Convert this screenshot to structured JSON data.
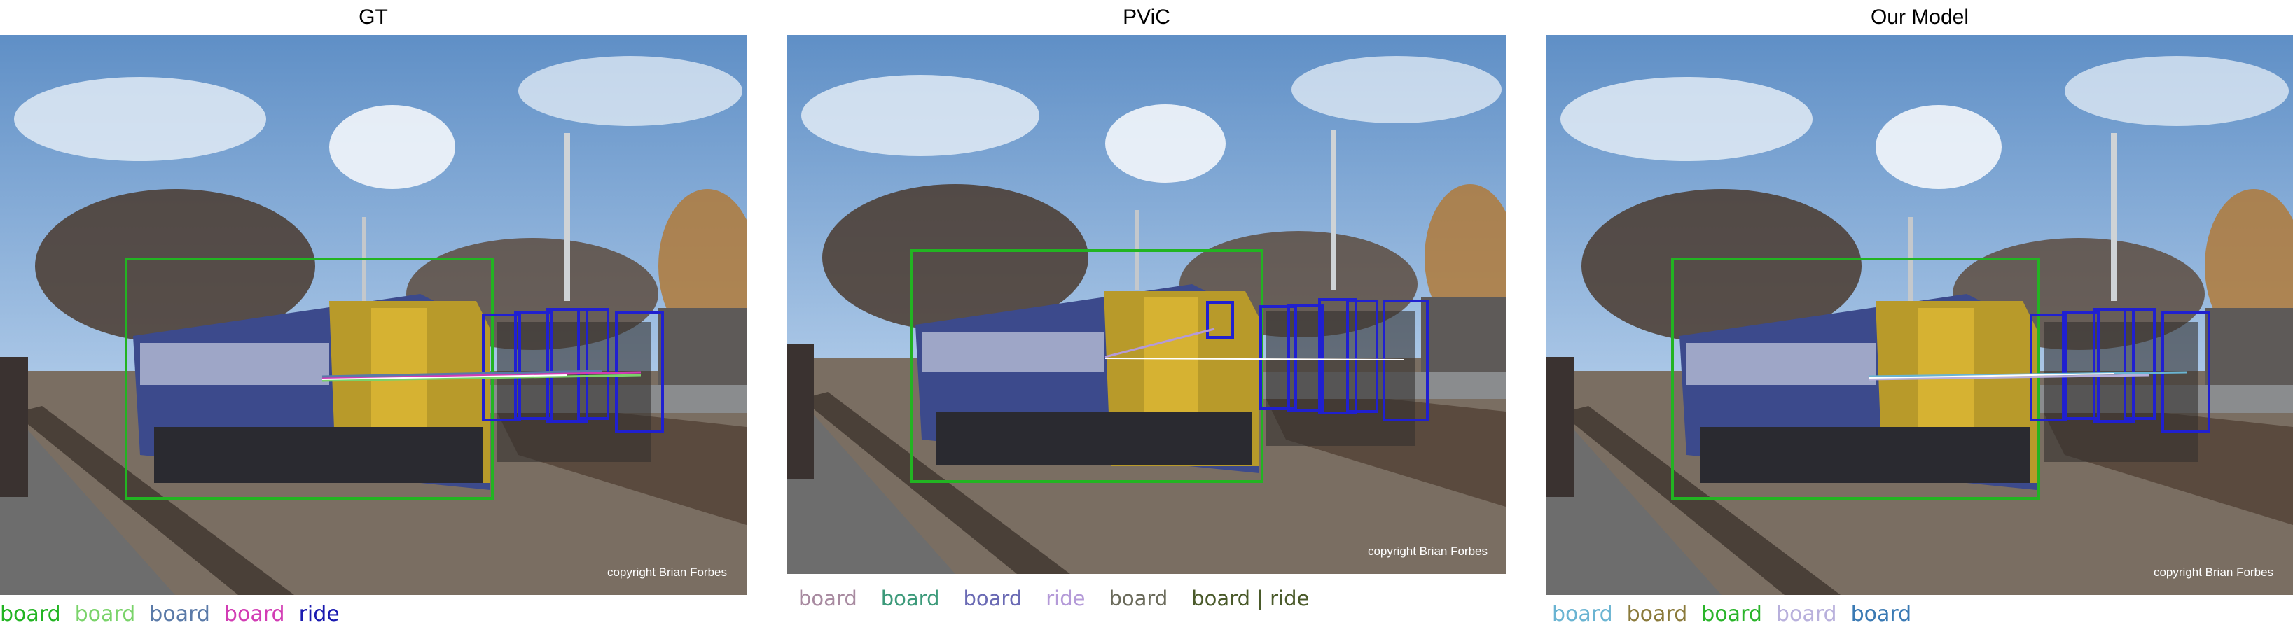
{
  "panels": [
    {
      "title": "GT",
      "copyright": "copyright Brian Forbes",
      "labels": [
        {
          "text": "board",
          "color": "#22b422"
        },
        {
          "text": "board",
          "color": "#7ad36a"
        },
        {
          "text": "board",
          "color": "#5a7aa8"
        },
        {
          "text": "board",
          "color": "#d23cb4"
        },
        {
          "text": "ride",
          "color": "#1a1ab0"
        }
      ]
    },
    {
      "title": "PViC",
      "copyright": "copyright Brian Forbes",
      "labels": [
        {
          "text": "board",
          "color": "#a88aa0"
        },
        {
          "text": "board",
          "color": "#3c9a7a"
        },
        {
          "text": "board",
          "color": "#6a6ab4"
        },
        {
          "text": "ride",
          "color": "#b49ad8"
        },
        {
          "text": "board",
          "color": "#6a6a5a"
        },
        {
          "text": "board | ride",
          "color": "#4a5a2a"
        }
      ]
    },
    {
      "title": "Our Model",
      "copyright": "copyright Brian Forbes",
      "labels": [
        {
          "text": "board",
          "color": "#6ab4d2"
        },
        {
          "text": "board",
          "color": "#8a7a3a"
        },
        {
          "text": "board",
          "color": "#2ab42a"
        },
        {
          "text": "board",
          "color": "#b8b0dc"
        },
        {
          "text": "board",
          "color": "#3a7ab4"
        }
      ]
    }
  ]
}
